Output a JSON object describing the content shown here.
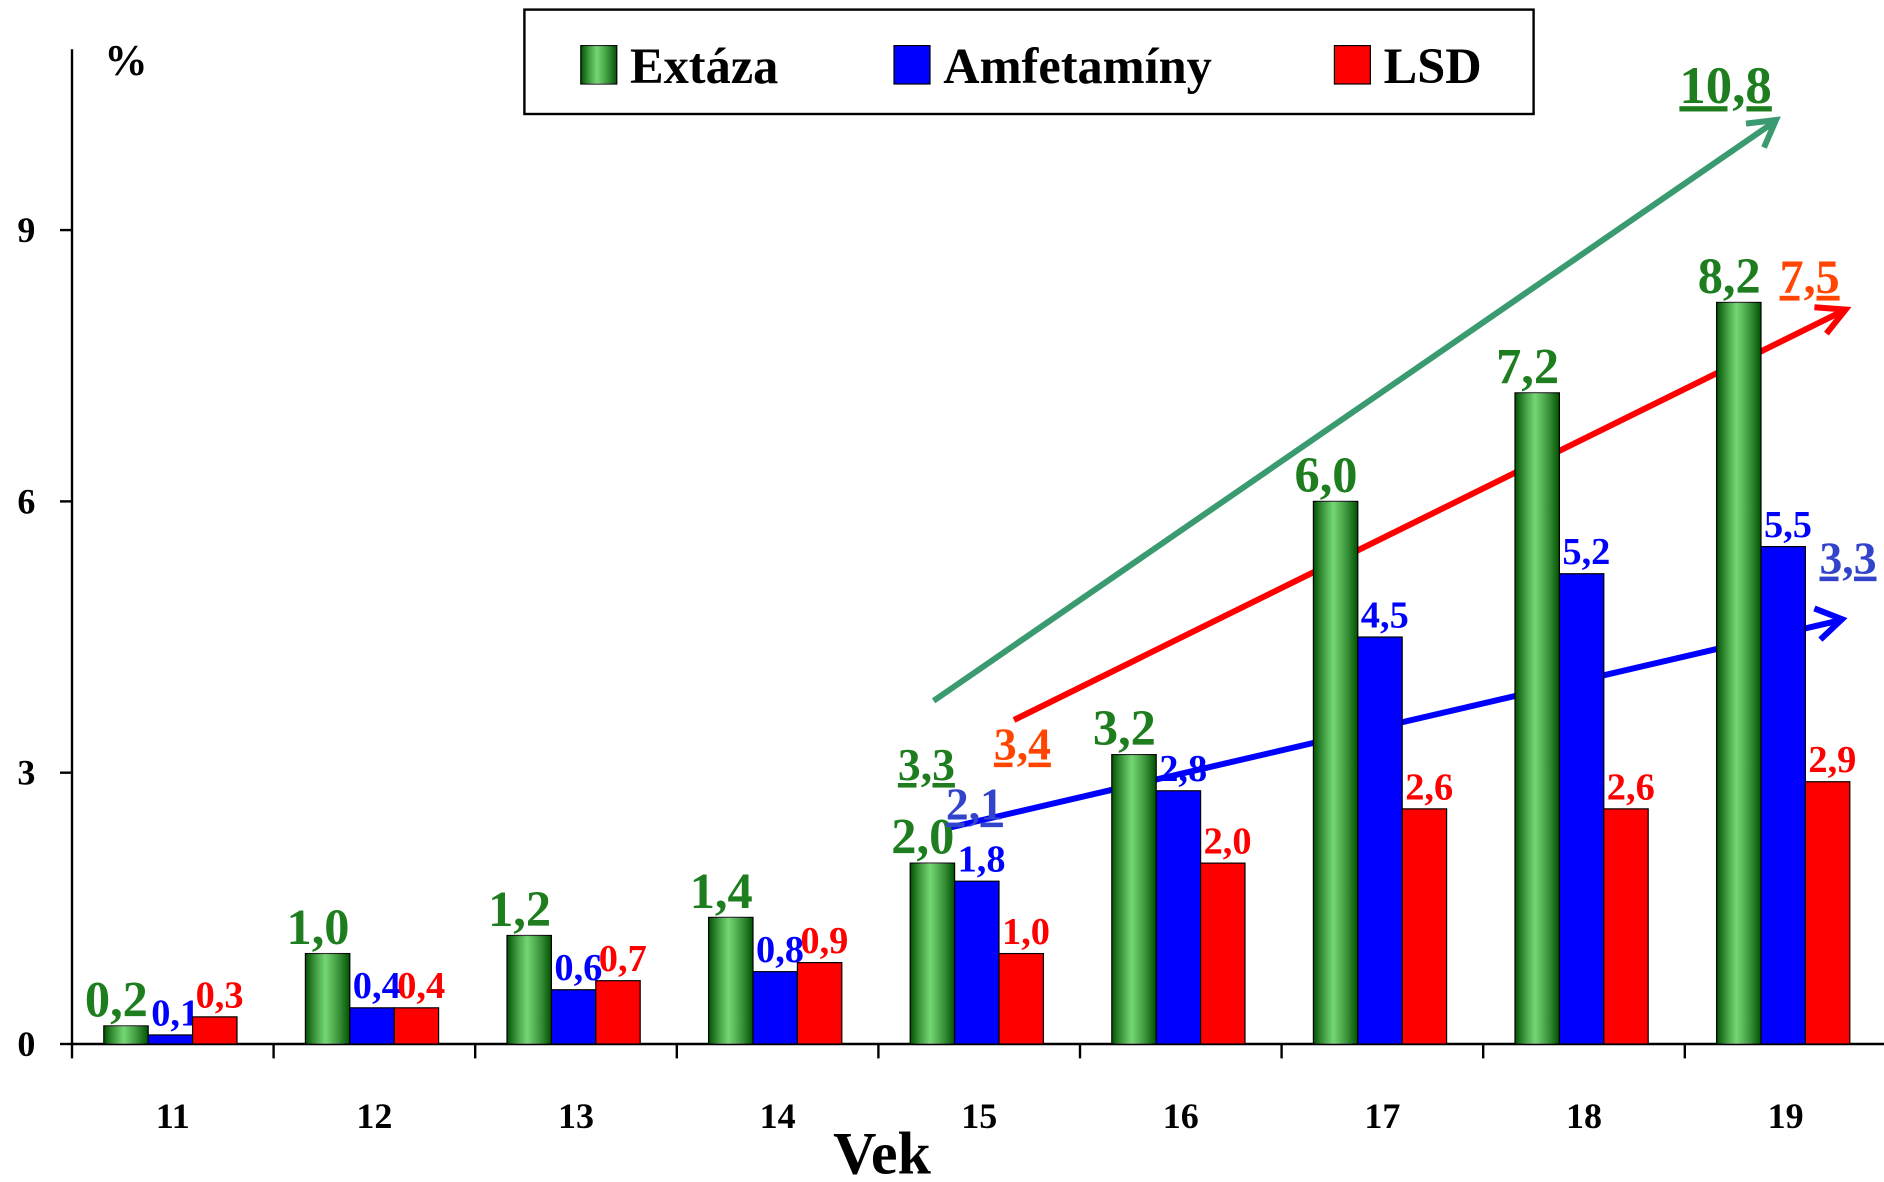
{
  "chart_data": {
    "type": "bar",
    "x_label": "Vek",
    "y_label": "%",
    "categories": [
      "11",
      "12",
      "13",
      "14",
      "15",
      "16",
      "17",
      "18",
      "19"
    ],
    "series": [
      {
        "name": "Extáza",
        "color": "#00b400",
        "label_color": "#1e7d1e",
        "fill_style": "gradient",
        "values": [
          0.2,
          1.0,
          1.2,
          1.4,
          2.0,
          3.2,
          6.0,
          7.2,
          8.2
        ],
        "value_labels": [
          "0,2",
          "1,0",
          "1,2",
          "1,4",
          "2,0",
          "3,2",
          "6,0",
          "7,2",
          "8,2"
        ]
      },
      {
        "name": "Amfetamíny",
        "color": "#0000ff",
        "label_color": "#0000ff",
        "values": [
          0.1,
          0.4,
          0.6,
          0.8,
          1.8,
          2.8,
          4.5,
          5.2,
          5.5
        ],
        "value_labels": [
          "0,1",
          "0,4",
          "0,6",
          "0,8",
          "1,8",
          "2,8",
          "4,5",
          "5,2",
          "5,5"
        ]
      },
      {
        "name": "LSD",
        "color": "#ff0000",
        "label_color": "#ff0000",
        "values": [
          0.3,
          0.4,
          0.7,
          0.9,
          1.0,
          2.0,
          2.6,
          2.6,
          2.9
        ],
        "value_labels": [
          "0,3",
          "0,4",
          "0,7",
          "0,9",
          "1,0",
          "2,0",
          "2,6",
          "2,6",
          "2,9"
        ]
      }
    ],
    "ylim": [
      0,
      11
    ],
    "yticks": [
      0,
      3,
      6,
      9
    ],
    "legend": "top",
    "annotations": [
      {
        "text": "3,3",
        "color": "#1e7d1e"
      },
      {
        "text": "10,8",
        "color": "#1e7d1e"
      },
      {
        "text": "3,4",
        "color": "#ff4500"
      },
      {
        "text": "7,5",
        "color": "#ff4500"
      },
      {
        "text": "2,1",
        "color": "#3344cc"
      },
      {
        "text": "3,3",
        "color": "#3344cc"
      }
    ]
  }
}
